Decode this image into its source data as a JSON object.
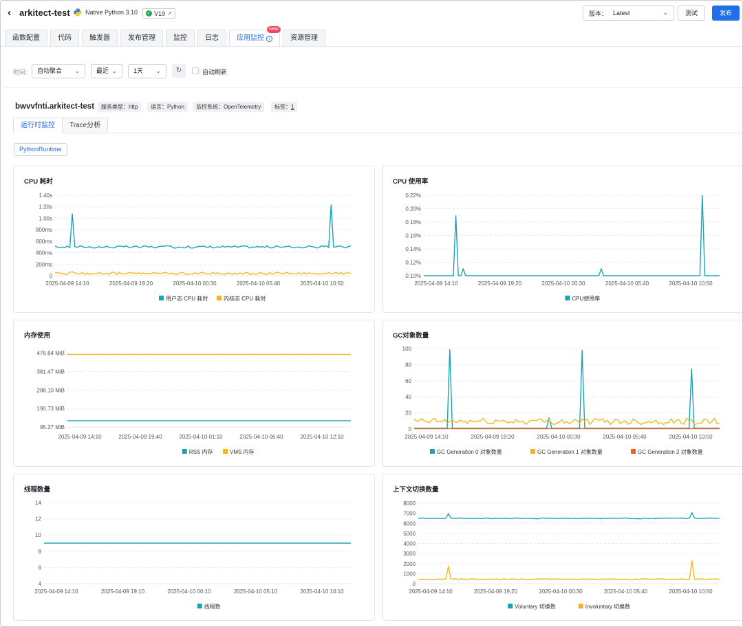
{
  "header": {
    "back_icon": "chevron-left-icon",
    "app_title": "arkitect-test",
    "runtime": "Native Python 3.10",
    "version_badge": "V19",
    "version_label": "版本：",
    "version_value": "Latest",
    "test_label": "测试",
    "publish_label": "发布"
  },
  "tabs": [
    {
      "label": "函数配置"
    },
    {
      "label": "代码"
    },
    {
      "label": "触发器"
    },
    {
      "label": "发布管理"
    },
    {
      "label": "监控"
    },
    {
      "label": "日志"
    },
    {
      "label": "应用监控",
      "badge": "New"
    },
    {
      "label": "资源管理"
    }
  ],
  "filters": {
    "time_label": "时间:",
    "aggregate": "自动聚合",
    "range": "最近",
    "span": "1天",
    "auto_refresh_label": "自动刷新"
  },
  "service": {
    "name": "bwvvfnti.arkitect-test",
    "tags": [
      "服务类型：http",
      "语言：Python",
      "监控系统：OpenTelemetry"
    ],
    "label_key": "标签：",
    "label_count": "1"
  },
  "subtabs": [
    "运行时监控",
    "Trace分析"
  ],
  "runtime_tag": "PythonRuntime",
  "colors": {
    "teal": "#1aa3b4",
    "yellow": "#f2b71b",
    "orange": "#e6651a"
  },
  "chart_data": [
    {
      "id": "cpu-time",
      "type": "line",
      "title": "CPU 耗时",
      "yticks": [
        "0",
        "200ms",
        "400ms",
        "600ms",
        "800ms",
        "1.00s",
        "1.20s",
        "1.40s"
      ],
      "ylim": [
        0,
        1.4
      ],
      "xticks": [
        "2025-04-09 14:10",
        "2025-04-09 19:20",
        "2025-04-10 00:30",
        "2025-04-10 05:40",
        "2025-04-10 10:50"
      ],
      "series": [
        {
          "name": "用户态 CPU 耗时",
          "color": "#1aa3b4",
          "base": 0.5,
          "noise": 0.02,
          "spikes": [
            [
              0.06,
              1.08
            ],
            [
              0.93,
              1.24
            ]
          ]
        },
        {
          "name": "内核态 CPU 耗时",
          "color": "#f2b71b",
          "base": 0.04,
          "noise": 0.01,
          "spikes": [
            [
              0.06,
              0.07
            ]
          ]
        }
      ]
    },
    {
      "id": "cpu-usage",
      "type": "line",
      "title": "CPU 使用率",
      "yticks": [
        "0.10%",
        "0.12%",
        "0.14%",
        "0.16%",
        "0.18%",
        "0.20%",
        "0.22%"
      ],
      "ylim": [
        0.1,
        0.22
      ],
      "xticks": [
        "2025-04-09 14:10",
        "2025-04-09 19:20",
        "2025-04-10 00:30",
        "2025-04-10 05:40",
        "2025-04-10 10:50"
      ],
      "series": [
        {
          "name": "CPU使用率",
          "color": "#1aa3b4",
          "base": 0.1,
          "noise": 0,
          "spikes": [
            [
              0.11,
              0.19
            ],
            [
              0.13,
              0.11
            ],
            [
              0.6,
              0.11
            ],
            [
              0.94,
              0.22
            ]
          ]
        }
      ]
    },
    {
      "id": "memory",
      "type": "line",
      "title": "内存使用",
      "yticks": [
        "95.37 MiB",
        "190.73 MiB",
        "286.10 MiB",
        "381.47 MiB",
        "476.84 MiB"
      ],
      "ylim": [
        85,
        490
      ],
      "xticks": [
        "2025-04-09 14:10",
        "2025-04-09 19:40",
        "2025-04-10 01:10",
        "2025-04-10 06:40",
        "2025-04-10 12:10"
      ],
      "series": [
        {
          "name": "RSS 内存",
          "color": "#1aa3b4",
          "base": 128,
          "noise": 0,
          "spikes": []
        },
        {
          "name": "VMS 内存",
          "color": "#f2b71b",
          "base": 470,
          "noise": 0,
          "spikes": []
        }
      ]
    },
    {
      "id": "gc-objects",
      "type": "line",
      "title": "GC对象数量",
      "yticks": [
        "0",
        "20",
        "40",
        "60",
        "80",
        "100"
      ],
      "ylim": [
        0,
        100
      ],
      "xticks": [
        "2025-04-09 14:10",
        "2025-04-09 19:20",
        "2025-04-10 00:30",
        "2025-04-10 05:40",
        "2025-04-10 10:50"
      ],
      "series": [
        {
          "name": "GC Generation 0 对象数量",
          "color": "#1aa3b4",
          "base": 1,
          "noise": 0,
          "spikes": [
            [
              0.12,
              99
            ],
            [
              0.44,
              14
            ],
            [
              0.55,
              98
            ],
            [
              0.91,
              75
            ]
          ]
        },
        {
          "name": "GC Generation 1 对象数量",
          "color": "#f2b71b",
          "base": 9.5,
          "noise": 0.4,
          "spikes": [
            [
              0.1,
              12
            ]
          ]
        },
        {
          "name": "GC Generation 2 对象数量",
          "color": "#e6651a",
          "base": 0.5,
          "noise": 0,
          "spikes": []
        }
      ]
    },
    {
      "id": "threads",
      "type": "line",
      "title": "线程数量",
      "yticks": [
        "4",
        "6",
        "8",
        "10",
        "12",
        "14"
      ],
      "ylim": [
        4,
        14
      ],
      "xticks": [
        "2025-04-09 14:10",
        "2025-04-09 19:10",
        "2025-04-10 00:10",
        "2025-04-10 05:10",
        "2025-04-10 10:10"
      ],
      "series": [
        {
          "name": "线程数",
          "color": "#1aa3b4",
          "base": 9,
          "noise": 0,
          "spikes": []
        }
      ]
    },
    {
      "id": "ctx-switch",
      "type": "line",
      "title": "上下文切换数量",
      "yticks": [
        "0",
        "1000",
        "2000",
        "3000",
        "4000",
        "5000",
        "6000",
        "7000",
        "8000"
      ],
      "ylim": [
        0,
        8000
      ],
      "xticks": [
        "2025-04-09 14:10",
        "2025-04-09 19:20",
        "2025-04-10 00:30",
        "2025-04-10 05:40",
        "2025-04-10 10:50"
      ],
      "series": [
        {
          "name": "Voluntary 切换数",
          "color": "#1aa3b4",
          "base": 6500,
          "noise": 40,
          "spikes": [
            [
              0.1,
              6950
            ],
            [
              0.91,
              7050
            ]
          ]
        },
        {
          "name": "Involuntary 切换数",
          "color": "#f2b71b",
          "base": 450,
          "noise": 40,
          "spikes": [
            [
              0.1,
              1750
            ],
            [
              0.91,
              2300
            ]
          ]
        }
      ]
    }
  ]
}
